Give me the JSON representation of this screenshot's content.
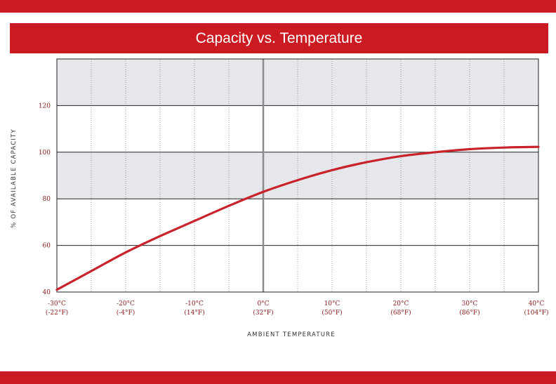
{
  "colors": {
    "accent": "#cc1a22",
    "curve": "#c8222b",
    "band": "#e6e7ea",
    "tick_text": "#8b1a1a"
  },
  "chart_data": {
    "type": "line",
    "title": "Capacity vs. Temperature",
    "xlabel": "AMBIENT TEMPERATURE",
    "ylabel": "% OF AVAILABLE CAPACITY",
    "xlim": [
      -30,
      40
    ],
    "ylim": [
      40,
      140
    ],
    "yticks": [
      40,
      60,
      80,
      100,
      120
    ],
    "xticks": [
      {
        "value": -30,
        "c": "-30°C",
        "f": "(-22°F)"
      },
      {
        "value": -20,
        "c": "-20°C",
        "f": "(-4°F)"
      },
      {
        "value": -10,
        "c": "-10°C",
        "f": "(14°F)"
      },
      {
        "value": 0,
        "c": "0°C",
        "f": "(32°F)"
      },
      {
        "value": 10,
        "c": "10°C",
        "f": "(50°F)"
      },
      {
        "value": 20,
        "c": "20°C",
        "f": "(68°F)"
      },
      {
        "value": 30,
        "c": "30°C",
        "f": "(86°F)"
      },
      {
        "value": 40,
        "c": "40°C",
        "f": "(104°F)"
      }
    ],
    "vertical_gridlines": [
      -25,
      -20,
      -15,
      -10,
      -5,
      5,
      10,
      15,
      20,
      25,
      30,
      35
    ],
    "shaded_bands": [
      [
        80,
        100
      ],
      [
        120,
        140
      ]
    ],
    "reference_line_x": 0,
    "series": [
      {
        "x": [
          -30,
          -25,
          -20,
          -15,
          -10,
          -5,
          0,
          5,
          10,
          15,
          20,
          25,
          30,
          35,
          40
        ],
        "y": [
          41,
          49,
          57,
          64,
          70.5,
          77,
          83,
          88,
          92.3,
          95.7,
          98.3,
          100,
          101.3,
          102,
          102.3
        ]
      }
    ]
  }
}
